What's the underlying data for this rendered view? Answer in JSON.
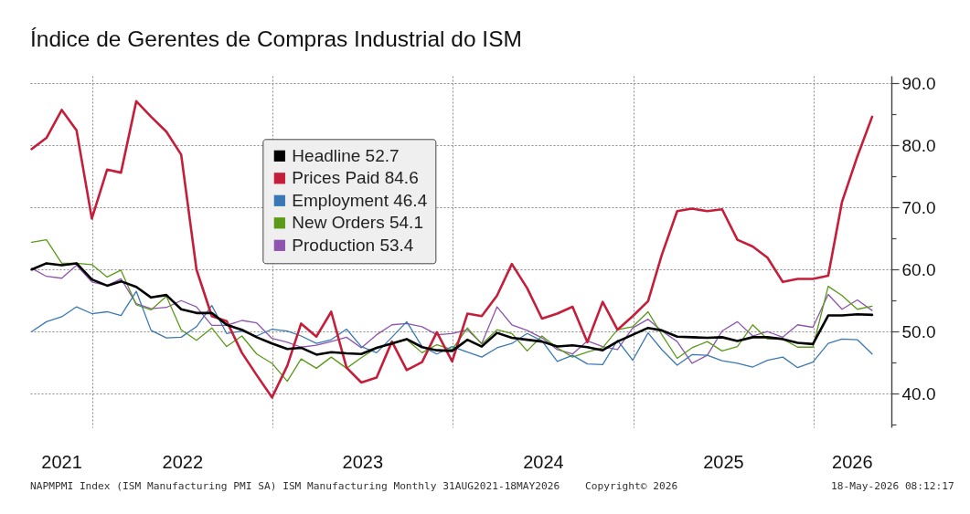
{
  "chart_data": {
    "type": "line",
    "title": "Índice de Gerentes de Compras Industrial do ISM",
    "x": [
      "2021-08-31",
      "2021-09-30",
      "2021-10-31",
      "2021-11-30",
      "2021-12-31",
      "2022-01-31",
      "2022-02-28",
      "2022-03-31",
      "2022-04-30",
      "2022-05-31",
      "2022-06-30",
      "2022-07-31",
      "2022-08-31",
      "2022-09-30",
      "2022-10-31",
      "2022-11-30",
      "2022-12-31",
      "2023-01-31",
      "2023-02-28",
      "2023-03-31",
      "2023-04-30",
      "2023-05-31",
      "2023-06-30",
      "2023-07-31",
      "2023-08-31",
      "2023-09-30",
      "2023-10-31",
      "2023-11-30",
      "2023-12-31",
      "2024-01-31",
      "2024-02-29",
      "2024-03-31",
      "2024-04-30",
      "2024-05-31",
      "2024-06-30",
      "2024-07-31",
      "2024-08-31",
      "2024-09-30",
      "2024-10-31",
      "2024-11-30",
      "2024-12-31",
      "2025-01-31",
      "2025-02-28",
      "2025-03-31",
      "2025-04-30",
      "2025-05-31",
      "2025-06-30",
      "2025-07-31",
      "2025-08-31",
      "2025-09-30",
      "2025-10-31",
      "2025-11-30",
      "2025-12-31",
      "2026-01-31",
      "2026-02-28",
      "2026-03-31",
      "2026-04-30"
    ],
    "xlim": [
      "2021-08-28",
      "2026-06-08"
    ],
    "xticks": [
      {
        "value": "2021-10-30",
        "label": "2021"
      },
      {
        "value": "2022-01-01",
        "label": null
      },
      {
        "value": "2022-07-02",
        "label": "2022"
      },
      {
        "value": "2023-01-01",
        "label": null
      },
      {
        "value": "2023-07-02",
        "label": "2023"
      },
      {
        "value": "2024-01-01",
        "label": null
      },
      {
        "value": "2024-07-02",
        "label": "2024"
      },
      {
        "value": "2025-01-01",
        "label": null
      },
      {
        "value": "2025-07-02",
        "label": "2025"
      },
      {
        "value": "2026-01-01",
        "label": null
      },
      {
        "value": "2026-03-20",
        "label": "2026"
      }
    ],
    "ylim": [
      34.6,
      91.2
    ],
    "yticks": [
      {
        "value": 35,
        "label": null
      },
      {
        "value": 40,
        "label": "40.0"
      },
      {
        "value": 45,
        "label": null
      },
      {
        "value": 50,
        "label": "50.0"
      },
      {
        "value": 55,
        "label": null
      },
      {
        "value": 60,
        "label": "60.0"
      },
      {
        "value": 65,
        "label": null
      },
      {
        "value": 70,
        "label": "70.0"
      },
      {
        "value": 75,
        "label": null
      },
      {
        "value": 80,
        "label": "80.0"
      },
      {
        "value": 85,
        "label": null
      },
      {
        "value": 90,
        "label": "90.0"
      }
    ],
    "grid": true,
    "legend": "top left",
    "series": [
      {
        "name": "Headline 52.7",
        "color": "#000000",
        "values": [
          60.0,
          61.0,
          60.7,
          61.0,
          58.4,
          57.4,
          58.1,
          57.2,
          55.5,
          55.9,
          53.6,
          53.0,
          53.0,
          51.1,
          50.3,
          49.1,
          48.1,
          47.2,
          47.4,
          46.3,
          46.7,
          46.5,
          46.4,
          47.4,
          48.1,
          48.8,
          47.5,
          47.0,
          46.9,
          48.7,
          47.6,
          49.8,
          49.0,
          48.7,
          48.4,
          47.6,
          47.8,
          47.5,
          47.0,
          48.4,
          49.5,
          50.6,
          50.2,
          49.2,
          49.1,
          49.0,
          49.1,
          48.5,
          49.1,
          49.1,
          48.8,
          48.2,
          48.0,
          52.6,
          52.6,
          52.8,
          52.7
        ]
      },
      {
        "name": "Prices Paid 84.6",
        "color": "#c41e3a",
        "values": [
          79.4,
          81.2,
          85.7,
          82.4,
          68.2,
          76.1,
          75.6,
          87.1,
          84.6,
          82.2,
          78.5,
          60.0,
          52.5,
          51.7,
          46.6,
          43.0,
          39.4,
          44.5,
          51.3,
          49.2,
          53.2,
          44.2,
          41.8,
          42.6,
          48.4,
          43.8,
          45.1,
          49.9,
          45.2,
          52.9,
          52.5,
          55.8,
          60.9,
          57.0,
          52.1,
          52.9,
          54.0,
          48.3,
          54.8,
          50.3,
          52.5,
          54.9,
          62.4,
          69.4,
          69.8,
          69.4,
          69.7,
          64.8,
          63.7,
          61.9,
          58.0,
          58.5,
          58.5,
          59.0,
          70.9,
          78.2,
          84.6
        ]
      },
      {
        "name": "Employment 46.4",
        "color": "#3a78b5",
        "values": [
          50.0,
          51.6,
          52.4,
          54.0,
          52.9,
          53.2,
          52.6,
          56.5,
          50.2,
          49.0,
          49.1,
          50.8,
          54.2,
          49.7,
          50.1,
          49.3,
          50.4,
          50.1,
          49.3,
          48.1,
          48.7,
          50.4,
          47.6,
          46.6,
          49.1,
          51.6,
          47.6,
          46.4,
          47.6,
          46.7,
          45.9,
          47.4,
          48.1,
          49.7,
          48.5,
          45.2,
          46.2,
          44.8,
          44.7,
          48.6,
          45.4,
          49.8,
          47.1,
          44.6,
          46.3,
          46.2,
          45.3,
          44.9,
          44.3,
          45.4,
          45.9,
          44.2,
          45.1,
          48.1,
          48.8,
          48.7,
          46.4
        ]
      },
      {
        "name": "New Orders 54.1",
        "color": "#5a9a18",
        "values": [
          64.4,
          64.8,
          61.0,
          61.0,
          60.8,
          58.8,
          59.9,
          54.3,
          53.5,
          55.7,
          50.3,
          48.6,
          50.6,
          47.6,
          49.3,
          46.4,
          44.9,
          42.0,
          45.6,
          44.1,
          45.9,
          44.1,
          45.8,
          47.4,
          48.1,
          48.7,
          46.6,
          47.9,
          47.1,
          50.6,
          48.0,
          50.3,
          49.7,
          46.9,
          49.3,
          47.4,
          45.9,
          46.7,
          47.4,
          50.3,
          50.8,
          53.2,
          49.5,
          45.7,
          47.4,
          48.4,
          46.9,
          47.6,
          51.1,
          48.8,
          48.8,
          47.5,
          47.5,
          57.3,
          55.8,
          53.6,
          54.1
        ]
      },
      {
        "name": "Production 53.4",
        "color": "#8e55b0",
        "values": [
          60.2,
          58.9,
          58.6,
          60.7,
          58.0,
          57.4,
          58.5,
          54.5,
          53.7,
          53.9,
          55.0,
          54.0,
          51.0,
          51.0,
          51.8,
          51.4,
          48.9,
          48.3,
          47.5,
          47.8,
          48.4,
          49.1,
          47.4,
          49.5,
          51.1,
          51.3,
          50.8,
          49.5,
          49.7,
          50.3,
          48.1,
          54.0,
          51.1,
          50.2,
          49.0,
          47.1,
          46.4,
          48.5,
          47.6,
          47.1,
          50.6,
          52.0,
          50.1,
          48.4,
          44.9,
          46.2,
          50.1,
          51.6,
          49.3,
          50.0,
          49.1,
          51.1,
          50.7,
          56.0,
          53.6,
          55.1,
          53.4
        ]
      }
    ],
    "annotations": [
      "NAPMPMI Index (ISM Manufacturing PMI SA) ISM Manufacturing Monthly 31AUG2021-18MAY2026",
      "Copyright© 2026",
      "18-May-2026 08:12:17"
    ]
  }
}
